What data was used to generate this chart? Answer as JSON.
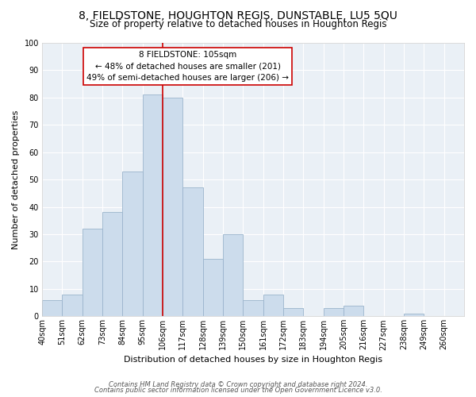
{
  "title": "8, FIELDSTONE, HOUGHTON REGIS, DUNSTABLE, LU5 5QU",
  "subtitle": "Size of property relative to detached houses in Houghton Regis",
  "xlabel": "Distribution of detached houses by size in Houghton Regis",
  "ylabel": "Number of detached properties",
  "bins": [
    "40sqm",
    "51sqm",
    "62sqm",
    "73sqm",
    "84sqm",
    "95sqm",
    "106sqm",
    "117sqm",
    "128sqm",
    "139sqm",
    "150sqm",
    "161sqm",
    "172sqm",
    "183sqm",
    "194sqm",
    "205sqm",
    "216sqm",
    "227sqm",
    "238sqm",
    "249sqm",
    "260sqm"
  ],
  "values": [
    6,
    8,
    32,
    38,
    53,
    81,
    80,
    47,
    21,
    30,
    6,
    8,
    3,
    0,
    3,
    4,
    0,
    0,
    1,
    0
  ],
  "bar_color": "#ccdcec",
  "bar_edge_color": "#9ab4cc",
  "vline_color": "#cc0000",
  "annotation_title": "8 FIELDSTONE: 105sqm",
  "annotation_line1": "← 48% of detached houses are smaller (201)",
  "annotation_line2": "49% of semi-detached houses are larger (206) →",
  "annotation_box_facecolor": "#ffffff",
  "annotation_box_edgecolor": "#cc0000",
  "ylim": [
    0,
    100
  ],
  "yticks": [
    0,
    10,
    20,
    30,
    40,
    50,
    60,
    70,
    80,
    90,
    100
  ],
  "footer1": "Contains HM Land Registry data © Crown copyright and database right 2024.",
  "footer2": "Contains public sector information licensed under the Open Government Licence v3.0.",
  "bg_color": "#eaf0f6",
  "title_fontsize": 10,
  "subtitle_fontsize": 8.5,
  "axis_label_fontsize": 8,
  "tick_fontsize": 7,
  "annotation_fontsize": 7.5,
  "footer_fontsize": 6
}
